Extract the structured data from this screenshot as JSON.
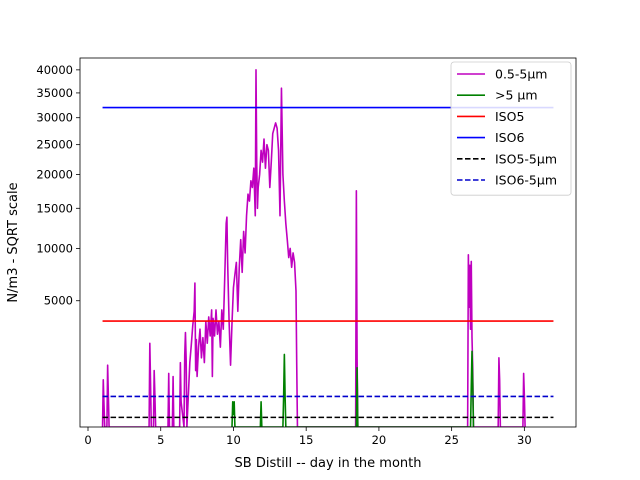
{
  "chart_data": {
    "type": "line",
    "title": "",
    "xlabel": "SB Distill -- day in the month",
    "ylabel": "N/m3 - SQRT scale",
    "y_scale": "sqrt",
    "xlim": [
      -0.55,
      33.55
    ],
    "ylim": [
      0,
      42700
    ],
    "x_ticks": [
      0,
      5,
      10,
      15,
      20,
      25,
      30
    ],
    "y_ticks": [
      5000,
      10000,
      15000,
      20000,
      25000,
      30000,
      35000,
      40000
    ],
    "grid": false,
    "legend_position": "top-right",
    "colors": {
      "fine": "#bf00bf",
      "coarse": "#008000",
      "iso5": "#ff0000",
      "iso6": "#0000ff",
      "iso5_5um": "#000000",
      "iso6_5um": "#0000cc"
    },
    "series": [
      {
        "name": "0.5-5µm",
        "color": "#bf00bf",
        "style": "solid",
        "x": [
          1.0,
          1.05,
          1.1,
          1.15,
          1.2,
          1.3,
          1.35,
          1.4,
          1.45,
          1.5,
          4.2,
          4.25,
          4.3,
          4.35,
          4.4,
          4.5,
          4.55,
          4.6,
          4.65,
          4.7,
          5.5,
          5.55,
          5.6,
          5.8,
          5.85,
          5.9,
          6.0,
          6.3,
          6.35,
          6.4,
          6.6,
          6.65,
          6.7,
          6.75,
          6.8,
          7.0,
          7.1,
          7.2,
          7.3,
          7.35,
          7.4,
          7.45,
          7.5,
          7.6,
          7.7,
          7.8,
          7.9,
          8.0,
          8.1,
          8.2,
          8.3,
          8.4,
          8.5,
          8.55,
          8.6,
          8.7,
          8.8,
          8.9,
          9.0,
          9.1,
          9.2,
          9.3,
          9.4,
          9.5,
          9.55,
          9.6,
          9.7,
          9.8,
          9.9,
          10.0,
          10.1,
          10.2,
          10.3,
          10.4,
          10.5,
          10.6,
          10.7,
          10.8,
          10.9,
          11.0,
          11.1,
          11.2,
          11.3,
          11.4,
          11.5,
          11.55,
          11.6,
          11.65,
          11.7,
          11.8,
          11.9,
          12.0,
          12.1,
          12.2,
          12.3,
          12.4,
          12.5,
          12.6,
          12.7,
          12.8,
          12.9,
          13.0,
          13.1,
          13.2,
          13.3,
          13.4,
          13.5,
          13.6,
          13.7,
          13.8,
          13.9,
          14.0,
          14.1,
          14.2,
          14.3,
          14.35,
          14.4,
          18.4,
          18.45,
          18.5,
          18.55,
          18.6,
          26.1,
          26.15,
          26.2,
          26.25,
          26.3,
          26.35,
          26.4,
          26.45,
          26.5,
          28.2,
          28.25,
          28.3,
          28.35,
          28.4,
          29.9,
          29.95,
          30.0,
          30.05,
          30.1
        ],
        "y": [
          0,
          700,
          150,
          0,
          0,
          0,
          1200,
          300,
          0,
          0,
          0,
          2200,
          600,
          0,
          0,
          0,
          1000,
          300,
          0,
          0,
          0,
          900,
          0,
          0,
          800,
          0,
          0,
          0,
          1300,
          200,
          0,
          1600,
          2800,
          1400,
          0,
          1300,
          2100,
          3200,
          4200,
          6500,
          1000,
          2400,
          800,
          2000,
          3000,
          1500,
          2500,
          1300,
          3500,
          2200,
          3800,
          2600,
          4300,
          800,
          3700,
          2600,
          4300,
          2700,
          3500,
          2000,
          4300,
          3000,
          7000,
          13000,
          13800,
          8500,
          3500,
          1200,
          3400,
          6100,
          7300,
          8500,
          4200,
          8000,
          11000,
          7500,
          12000,
          9500,
          14000,
          17000,
          16000,
          19000,
          18000,
          21000,
          14000,
          40000,
          22000,
          15000,
          18000,
          20000,
          24000,
          22000,
          26000,
          21000,
          25000,
          24000,
          18000,
          22000,
          27000,
          28000,
          29000,
          28000,
          24000,
          14000,
          36000,
          20000,
          16000,
          13000,
          11000,
          9000,
          10000,
          8000,
          9500,
          8500,
          5800,
          1200,
          0,
          0,
          17500,
          1500,
          0,
          0,
          0,
          9300,
          4500,
          8200,
          3000,
          8600,
          2500,
          1100,
          0,
          0,
          1500,
          700,
          0,
          0,
          0,
          900,
          300,
          0,
          0
        ]
      },
      {
        "name": ">5 µm",
        "color": "#008000",
        "style": "solid",
        "x": [
          9.9,
          9.95,
          10.0,
          10.05,
          10.1,
          11.85,
          11.9,
          11.95,
          13.4,
          13.45,
          13.5,
          13.55,
          13.6,
          18.45,
          18.5,
          18.55,
          26.3,
          26.35,
          26.4,
          26.45,
          26.5
        ],
        "y": [
          0,
          200,
          50,
          200,
          0,
          0,
          200,
          0,
          0,
          300,
          1650,
          300,
          0,
          0,
          1100,
          0,
          0,
          500,
          1800,
          600,
          0
        ]
      },
      {
        "name": "ISO5",
        "color": "#ff0000",
        "style": "solid",
        "x": [
          1,
          32
        ],
        "y": [
          3520,
          3520
        ]
      },
      {
        "name": "ISO6",
        "color": "#0000ff",
        "style": "solid",
        "x": [
          1,
          32
        ],
        "y": [
          32000,
          32000
        ]
      },
      {
        "name": "ISO5-5µm",
        "color": "#000000",
        "style": "dashed",
        "x": [
          1,
          32
        ],
        "y": [
          29,
          29
        ]
      },
      {
        "name": "ISO6-5µm",
        "color": "#0000cc",
        "style": "dashed",
        "x": [
          1,
          32
        ],
        "y": [
          293,
          293
        ]
      }
    ]
  }
}
